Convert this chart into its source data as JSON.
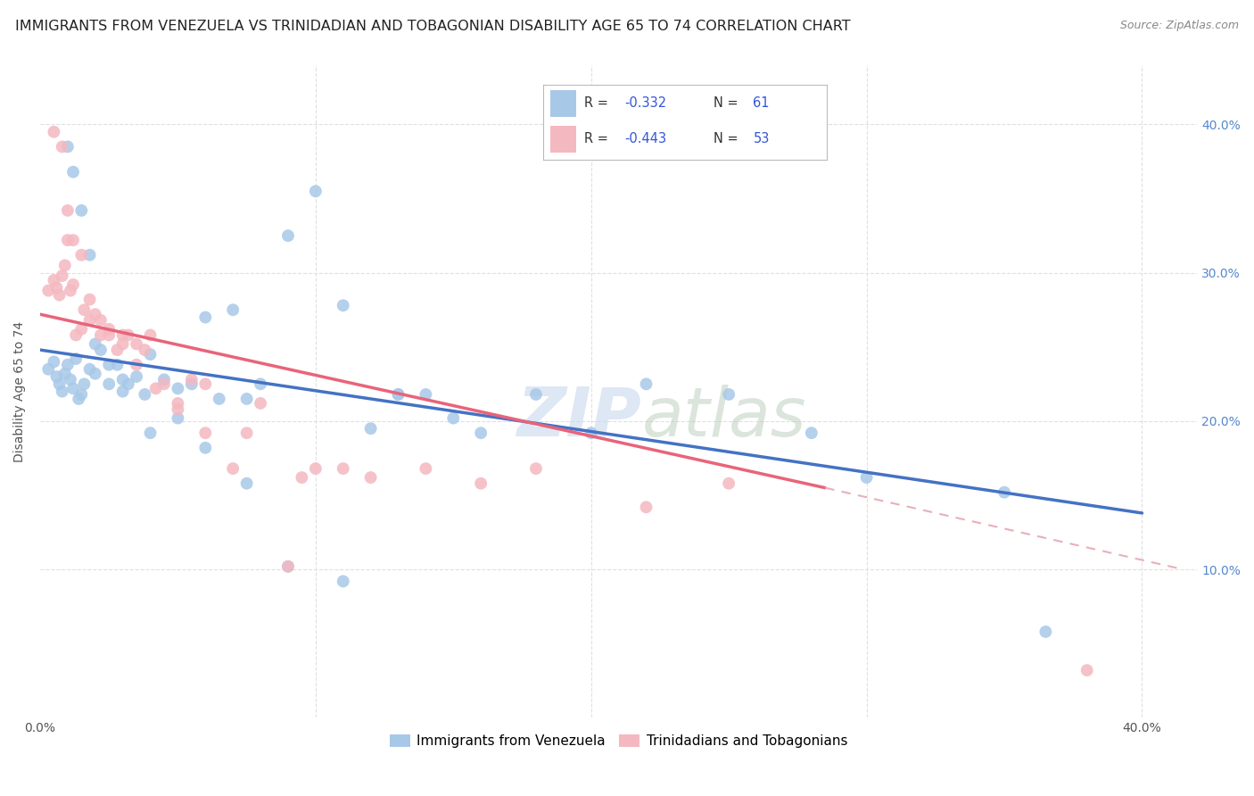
{
  "title": "IMMIGRANTS FROM VENEZUELA VS TRINIDADIAN AND TOBAGONIAN DISABILITY AGE 65 TO 74 CORRELATION CHART",
  "source": "Source: ZipAtlas.com",
  "ylabel": "Disability Age 65 to 74",
  "xlim": [
    0.0,
    0.42
  ],
  "ylim": [
    0.0,
    0.44
  ],
  "legend_blue_r": "-0.332",
  "legend_blue_n": "61",
  "legend_pink_r": "-0.443",
  "legend_pink_n": "53",
  "legend_label_blue": "Immigrants from Venezuela",
  "legend_label_pink": "Trinidadians and Tobagonians",
  "blue_color": "#a8c8e8",
  "pink_color": "#f4b8c0",
  "trendline_blue_color": "#4472c4",
  "trendline_pink_color": "#e8647a",
  "trendline_pink_dash_color": "#e8b0b8",
  "watermark_color": "#d8e4f0",
  "watermark_color2": "#c8d8c8",
  "blue_x": [
    0.003,
    0.005,
    0.006,
    0.007,
    0.008,
    0.009,
    0.01,
    0.011,
    0.012,
    0.013,
    0.014,
    0.015,
    0.016,
    0.018,
    0.02,
    0.022,
    0.025,
    0.028,
    0.03,
    0.032,
    0.035,
    0.038,
    0.04,
    0.045,
    0.05,
    0.055,
    0.06,
    0.065,
    0.07,
    0.075,
    0.08,
    0.09,
    0.1,
    0.11,
    0.12,
    0.13,
    0.14,
    0.16,
    0.18,
    0.2,
    0.22,
    0.25,
    0.28,
    0.3,
    0.01,
    0.012,
    0.015,
    0.018,
    0.02,
    0.025,
    0.03,
    0.04,
    0.05,
    0.06,
    0.075,
    0.09,
    0.11,
    0.13,
    0.15,
    0.35,
    0.365
  ],
  "blue_y": [
    0.235,
    0.24,
    0.23,
    0.225,
    0.22,
    0.232,
    0.238,
    0.228,
    0.222,
    0.242,
    0.215,
    0.218,
    0.225,
    0.235,
    0.232,
    0.248,
    0.225,
    0.238,
    0.22,
    0.225,
    0.23,
    0.218,
    0.245,
    0.228,
    0.222,
    0.225,
    0.27,
    0.215,
    0.275,
    0.215,
    0.225,
    0.325,
    0.355,
    0.278,
    0.195,
    0.218,
    0.218,
    0.192,
    0.218,
    0.192,
    0.225,
    0.218,
    0.192,
    0.162,
    0.385,
    0.368,
    0.342,
    0.312,
    0.252,
    0.238,
    0.228,
    0.192,
    0.202,
    0.182,
    0.158,
    0.102,
    0.092,
    0.218,
    0.202,
    0.152,
    0.058
  ],
  "pink_x": [
    0.003,
    0.005,
    0.006,
    0.007,
    0.008,
    0.009,
    0.01,
    0.011,
    0.012,
    0.013,
    0.015,
    0.016,
    0.018,
    0.02,
    0.022,
    0.025,
    0.028,
    0.03,
    0.032,
    0.035,
    0.038,
    0.04,
    0.045,
    0.05,
    0.055,
    0.06,
    0.07,
    0.08,
    0.09,
    0.1,
    0.11,
    0.12,
    0.14,
    0.16,
    0.18,
    0.22,
    0.25,
    0.005,
    0.008,
    0.01,
    0.012,
    0.015,
    0.018,
    0.022,
    0.025,
    0.03,
    0.035,
    0.042,
    0.05,
    0.06,
    0.075,
    0.095,
    0.38
  ],
  "pink_y": [
    0.288,
    0.295,
    0.29,
    0.285,
    0.298,
    0.305,
    0.322,
    0.288,
    0.292,
    0.258,
    0.262,
    0.275,
    0.268,
    0.272,
    0.258,
    0.262,
    0.248,
    0.258,
    0.258,
    0.252,
    0.248,
    0.258,
    0.225,
    0.212,
    0.228,
    0.225,
    0.168,
    0.212,
    0.102,
    0.168,
    0.168,
    0.162,
    0.168,
    0.158,
    0.168,
    0.142,
    0.158,
    0.395,
    0.385,
    0.342,
    0.322,
    0.312,
    0.282,
    0.268,
    0.258,
    0.252,
    0.238,
    0.222,
    0.208,
    0.192,
    0.192,
    0.162,
    0.032
  ],
  "blue_trend_x0": 0.0,
  "blue_trend_x1": 0.4,
  "blue_trend_y0": 0.248,
  "blue_trend_y1": 0.138,
  "pink_trend_x0": 0.0,
  "pink_trend_x1": 0.285,
  "pink_trend_y0": 0.272,
  "pink_trend_y1": 0.155,
  "pink_dash_trend_x0": 0.285,
  "pink_dash_trend_x1": 0.415,
  "pink_dash_trend_y0": 0.155,
  "pink_dash_trend_y1": 0.1,
  "grid_color": "#e0e0e0",
  "background_color": "#ffffff",
  "title_fontsize": 11.5,
  "axis_label_fontsize": 10,
  "tick_fontsize": 10
}
